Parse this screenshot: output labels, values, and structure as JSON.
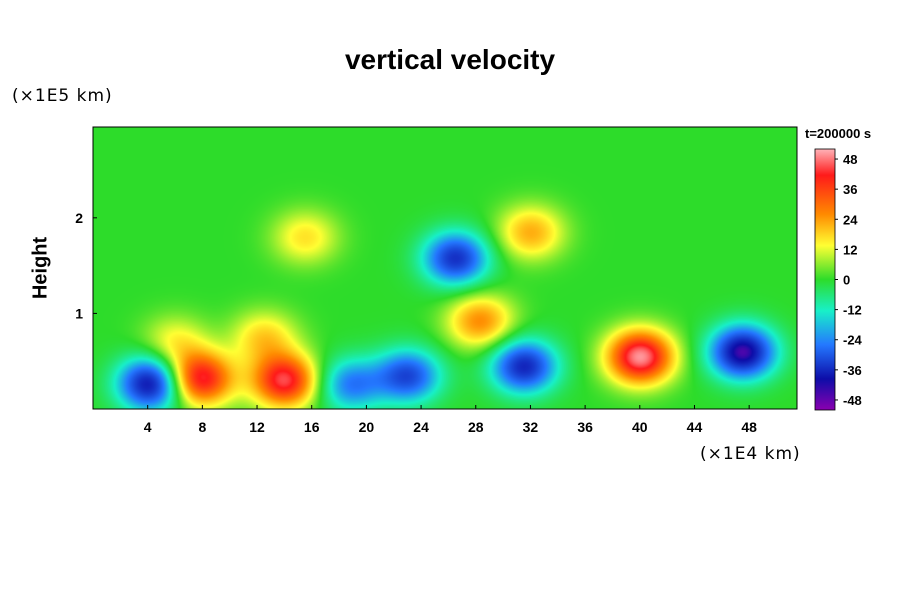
{
  "chart_data": {
    "type": "heatmap",
    "title": "vertical velocity",
    "ylabel": "Height",
    "xlabel": "",
    "y_unit": "(×1E5 km)",
    "x_unit": "(×1E4 km)",
    "time_label": "t=200000 s",
    "xlim": [
      0,
      51.5
    ],
    "ylim": [
      0,
      2.95
    ],
    "x_ticks": [
      4,
      8,
      12,
      16,
      20,
      24,
      28,
      32,
      36,
      40,
      44,
      48
    ],
    "y_ticks": [
      1,
      2
    ],
    "colorbar": {
      "ticks": [
        48,
        36,
        24,
        12,
        0,
        -12,
        -24,
        -36,
        -48
      ],
      "range": [
        -52,
        52
      ]
    },
    "features": [
      {
        "x": 4.2,
        "y": 0.27,
        "value": -45
      },
      {
        "x": 7.8,
        "y": 0.32,
        "value": 44
      },
      {
        "x": 14.0,
        "y": 0.3,
        "value": 44
      },
      {
        "x": 18.8,
        "y": 0.26,
        "value": -26
      },
      {
        "x": 23.0,
        "y": 0.35,
        "value": -34
      },
      {
        "x": 31.5,
        "y": 0.45,
        "value": -40
      },
      {
        "x": 40.0,
        "y": 0.55,
        "value": 50
      },
      {
        "x": 47.5,
        "y": 0.6,
        "value": -48
      },
      {
        "x": 26.5,
        "y": 1.58,
        "value": -38
      },
      {
        "x": 12.5,
        "y": 0.75,
        "value": 18
      },
      {
        "x": 6.0,
        "y": 0.7,
        "value": 14
      },
      {
        "x": 32.0,
        "y": 1.85,
        "value": 22
      },
      {
        "x": 15.5,
        "y": 1.8,
        "value": 16
      },
      {
        "x": 28.3,
        "y": 0.92,
        "value": 26
      }
    ]
  }
}
